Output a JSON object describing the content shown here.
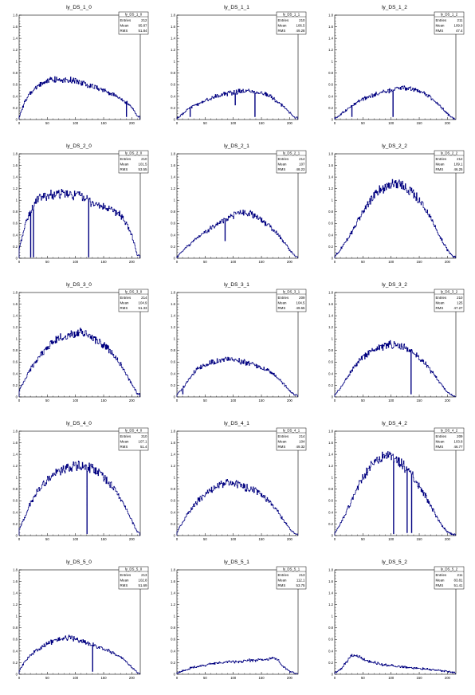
{
  "chart_data": [
    {
      "type": "histogram",
      "title": "ly_DS_1_0",
      "stats_name": "ly_DS_1_0",
      "entries": "212",
      "mean": "95.87",
      "rms": "51.84",
      "xlim": [
        0,
        215
      ],
      "ylim": [
        0,
        1.8
      ],
      "x": [
        0,
        10,
        20,
        30,
        40,
        50,
        60,
        70,
        80,
        90,
        100,
        110,
        120,
        130,
        140,
        150,
        160,
        170,
        180,
        190,
        200,
        210
      ],
      "y": [
        0.05,
        0.3,
        0.45,
        0.55,
        0.62,
        0.67,
        0.7,
        0.69,
        0.7,
        0.68,
        0.66,
        0.64,
        0.61,
        0.58,
        0.55,
        0.51,
        0.46,
        0.42,
        0.36,
        0.3,
        0.22,
        0.05
      ],
      "dips": [
        [
          190,
          0.05
        ]
      ]
    },
    {
      "type": "histogram",
      "title": "ly_DS_1_1",
      "stats_name": "ly_DS_1_1",
      "entries": "210",
      "mean": "106.5",
      "rms": "49.28",
      "xlim": [
        0,
        215
      ],
      "ylim": [
        0,
        1.8
      ],
      "x": [
        0,
        10,
        20,
        30,
        40,
        50,
        60,
        70,
        80,
        90,
        100,
        110,
        120,
        130,
        140,
        150,
        160,
        170,
        180,
        190,
        200,
        210
      ],
      "y": [
        0.02,
        0.1,
        0.18,
        0.24,
        0.28,
        0.33,
        0.36,
        0.4,
        0.43,
        0.45,
        0.47,
        0.48,
        0.49,
        0.49,
        0.48,
        0.46,
        0.42,
        0.37,
        0.3,
        0.22,
        0.12,
        0.03
      ],
      "dips": [
        [
          23,
          0.05
        ],
        [
          103,
          0.25
        ],
        [
          138,
          0.05
        ]
      ]
    },
    {
      "type": "histogram",
      "title": "ly_DS_1_2",
      "stats_name": "ly_DS_1_2",
      "entries": "211",
      "mean": "109.9",
      "rms": "47.4",
      "xlim": [
        0,
        215
      ],
      "ylim": [
        0,
        1.8
      ],
      "x": [
        0,
        10,
        20,
        30,
        40,
        50,
        60,
        70,
        80,
        90,
        100,
        110,
        120,
        130,
        140,
        150,
        160,
        170,
        180,
        190,
        200,
        210
      ],
      "y": [
        0.02,
        0.08,
        0.16,
        0.23,
        0.3,
        0.35,
        0.39,
        0.43,
        0.46,
        0.49,
        0.51,
        0.53,
        0.55,
        0.54,
        0.52,
        0.49,
        0.45,
        0.38,
        0.3,
        0.2,
        0.1,
        0.02
      ],
      "dips": [
        [
          30,
          0.05
        ],
        [
          103,
          0.05
        ]
      ]
    },
    {
      "type": "histogram",
      "title": "ly_DS_2_0",
      "stats_name": "ly_DS_2_0",
      "entries": "210",
      "mean": "101.5",
      "rms": "53.55",
      "xlim": [
        0,
        215
      ],
      "ylim": [
        0,
        1.8
      ],
      "x": [
        0,
        10,
        20,
        30,
        40,
        50,
        60,
        70,
        80,
        90,
        100,
        110,
        120,
        130,
        140,
        150,
        160,
        170,
        180,
        190,
        200,
        210
      ],
      "y": [
        0.15,
        0.55,
        0.8,
        0.98,
        1.05,
        1.08,
        1.1,
        1.09,
        1.12,
        1.08,
        1.1,
        1.07,
        1.02,
        0.95,
        0.92,
        0.88,
        0.84,
        0.8,
        0.75,
        0.6,
        0.4,
        0.05
      ],
      "dips": [
        [
          20,
          0.02
        ],
        [
          25,
          0.02
        ],
        [
          123,
          0.02
        ]
      ]
    },
    {
      "type": "histogram",
      "title": "ly_DS_2_1",
      "stats_name": "ly_DS_2_1",
      "entries": "214",
      "mean": "107",
      "rms": "48.23",
      "xlim": [
        0,
        215
      ],
      "ylim": [
        0,
        1.8
      ],
      "x": [
        0,
        10,
        20,
        30,
        40,
        50,
        60,
        70,
        80,
        90,
        100,
        110,
        120,
        130,
        140,
        150,
        160,
        170,
        180,
        190,
        200,
        210
      ],
      "y": [
        0.02,
        0.12,
        0.22,
        0.3,
        0.38,
        0.45,
        0.52,
        0.58,
        0.64,
        0.7,
        0.74,
        0.78,
        0.8,
        0.76,
        0.72,
        0.66,
        0.58,
        0.5,
        0.4,
        0.28,
        0.14,
        0.03
      ],
      "dips": [
        [
          85,
          0.3
        ]
      ]
    },
    {
      "type": "histogram",
      "title": "ly_DS_2_2",
      "stats_name": "ly_DS_2_2",
      "entries": "212",
      "mean": "109.1",
      "rms": "46.25",
      "xlim": [
        0,
        215
      ],
      "ylim": [
        0,
        1.8
      ],
      "x": [
        0,
        10,
        20,
        30,
        40,
        50,
        60,
        70,
        80,
        90,
        100,
        110,
        120,
        130,
        140,
        150,
        160,
        170,
        180,
        190,
        200,
        210
      ],
      "y": [
        0.03,
        0.15,
        0.3,
        0.45,
        0.62,
        0.8,
        0.95,
        1.08,
        1.18,
        1.24,
        1.28,
        1.3,
        1.26,
        1.2,
        1.12,
        1.0,
        0.86,
        0.7,
        0.5,
        0.32,
        0.14,
        0.03
      ],
      "dips": []
    },
    {
      "type": "histogram",
      "title": "ly_DS_3_0",
      "stats_name": "ly_DS_3_0",
      "entries": "214",
      "mean": "104.9",
      "rms": "51.33",
      "xlim": [
        0,
        215
      ],
      "ylim": [
        0,
        1.8
      ],
      "x": [
        0,
        10,
        20,
        30,
        40,
        50,
        60,
        70,
        80,
        90,
        100,
        110,
        120,
        130,
        140,
        150,
        160,
        170,
        180,
        190,
        200,
        210
      ],
      "y": [
        0.1,
        0.3,
        0.48,
        0.62,
        0.74,
        0.85,
        0.94,
        1.0,
        1.05,
        1.08,
        1.1,
        1.1,
        1.07,
        1.02,
        0.97,
        0.9,
        0.8,
        0.7,
        0.56,
        0.4,
        0.22,
        0.05
      ],
      "dips": []
    },
    {
      "type": "histogram",
      "title": "ly_DS_3_1",
      "stats_name": "ly_DS_3_1",
      "entries": "209",
      "mean": "104.5",
      "rms": "49.65",
      "xlim": [
        0,
        215
      ],
      "ylim": [
        0,
        1.8
      ],
      "x": [
        0,
        10,
        20,
        30,
        40,
        50,
        60,
        70,
        80,
        90,
        100,
        110,
        120,
        130,
        140,
        150,
        160,
        170,
        180,
        190,
        200,
        210
      ],
      "y": [
        0.04,
        0.15,
        0.3,
        0.42,
        0.5,
        0.55,
        0.6,
        0.62,
        0.64,
        0.65,
        0.64,
        0.62,
        0.6,
        0.57,
        0.54,
        0.5,
        0.46,
        0.4,
        0.32,
        0.22,
        0.1,
        0.03
      ],
      "dips": [
        [
          10,
          0.05
        ]
      ]
    },
    {
      "type": "histogram",
      "title": "ly_DS_3_2",
      "stats_name": "ly_DS_3_2",
      "entries": "210",
      "mean": "125",
      "rms": "47.27",
      "xlim": [
        0,
        215
      ],
      "ylim": [
        0,
        1.8
      ],
      "x": [
        0,
        10,
        20,
        30,
        40,
        50,
        60,
        70,
        80,
        90,
        100,
        110,
        120,
        130,
        140,
        150,
        160,
        170,
        180,
        190,
        200,
        210
      ],
      "y": [
        0.04,
        0.15,
        0.3,
        0.45,
        0.58,
        0.68,
        0.76,
        0.82,
        0.86,
        0.88,
        0.9,
        0.88,
        0.86,
        0.82,
        0.76,
        0.68,
        0.58,
        0.46,
        0.34,
        0.2,
        0.08,
        0.02
      ],
      "dips": [
        [
          135,
          0.05
        ]
      ]
    },
    {
      "type": "histogram",
      "title": "ly_DS_4_0",
      "stats_name": "ly_DS_4_0",
      "entries": "310",
      "mean": "107.1",
      "rms": "51.4",
      "xlim": [
        0,
        215
      ],
      "ylim": [
        0,
        1.8
      ],
      "x": [
        0,
        10,
        20,
        30,
        40,
        50,
        60,
        70,
        80,
        90,
        100,
        110,
        120,
        130,
        140,
        150,
        160,
        170,
        180,
        190,
        200,
        210
      ],
      "y": [
        0.1,
        0.32,
        0.55,
        0.72,
        0.86,
        0.96,
        1.04,
        1.1,
        1.14,
        1.18,
        1.2,
        1.2,
        1.18,
        1.15,
        1.1,
        1.02,
        0.92,
        0.8,
        0.64,
        0.46,
        0.26,
        0.06
      ],
      "dips": [
        [
          120,
          0.03
        ]
      ]
    },
    {
      "type": "histogram",
      "title": "ly_DS_4_1",
      "stats_name": "ly_DS_4_1",
      "entries": "214",
      "mean": "104",
      "rms": "49.32",
      "xlim": [
        0,
        215
      ],
      "ylim": [
        0,
        1.8
      ],
      "x": [
        0,
        10,
        20,
        30,
        40,
        50,
        60,
        70,
        80,
        90,
        100,
        110,
        120,
        130,
        140,
        150,
        160,
        170,
        180,
        190,
        200,
        210
      ],
      "y": [
        0.05,
        0.22,
        0.4,
        0.52,
        0.62,
        0.7,
        0.78,
        0.84,
        0.88,
        0.92,
        0.9,
        0.88,
        0.84,
        0.8,
        0.76,
        0.7,
        0.62,
        0.52,
        0.4,
        0.26,
        0.12,
        0.03
      ],
      "dips": []
    },
    {
      "type": "histogram",
      "title": "ly_DS_4_2",
      "stats_name": "ly_DS_4_2",
      "entries": "209",
      "mean": "103.8",
      "rms": "46.77",
      "xlim": [
        0,
        215
      ],
      "ylim": [
        0,
        1.8
      ],
      "x": [
        0,
        10,
        20,
        30,
        40,
        50,
        60,
        70,
        80,
        90,
        100,
        110,
        120,
        130,
        140,
        150,
        160,
        170,
        180,
        190,
        200,
        210
      ],
      "y": [
        0.04,
        0.2,
        0.4,
        0.6,
        0.82,
        1.0,
        1.15,
        1.26,
        1.32,
        1.36,
        1.36,
        1.3,
        1.22,
        1.12,
        1.0,
        0.86,
        0.7,
        0.52,
        0.34,
        0.18,
        0.06,
        0.02
      ],
      "dips": [
        [
          104,
          0.03
        ],
        [
          128,
          0.05
        ],
        [
          136,
          0.05
        ]
      ]
    },
    {
      "type": "histogram",
      "title": "ly_DS_5_0",
      "stats_name": "ly_DS_5_0",
      "entries": "213",
      "mean": "102.8",
      "rms": "51.69",
      "xlim": [
        0,
        215
      ],
      "ylim": [
        0,
        1.8
      ],
      "x": [
        0,
        10,
        20,
        30,
        40,
        50,
        60,
        70,
        80,
        90,
        100,
        110,
        120,
        130,
        140,
        150,
        160,
        170,
        180,
        190,
        200,
        210
      ],
      "y": [
        0.05,
        0.22,
        0.32,
        0.4,
        0.46,
        0.52,
        0.56,
        0.6,
        0.62,
        0.64,
        0.6,
        0.58,
        0.55,
        0.52,
        0.48,
        0.44,
        0.4,
        0.36,
        0.3,
        0.22,
        0.12,
        0.03
      ],
      "dips": [
        [
          130,
          0.05
        ]
      ]
    },
    {
      "type": "histogram",
      "title": "ly_DS_5_1",
      "stats_name": "ly_DS_5_1",
      "entries": "213",
      "mean": "112.1",
      "rms": "53.75",
      "xlim": [
        0,
        215
      ],
      "ylim": [
        0,
        1.8
      ],
      "x": [
        0,
        10,
        20,
        30,
        40,
        50,
        60,
        70,
        80,
        90,
        100,
        110,
        120,
        130,
        140,
        150,
        160,
        170,
        180,
        190,
        200,
        210
      ],
      "y": [
        0.03,
        0.06,
        0.09,
        0.12,
        0.14,
        0.16,
        0.18,
        0.19,
        0.2,
        0.21,
        0.22,
        0.22,
        0.23,
        0.24,
        0.24,
        0.25,
        0.26,
        0.28,
        0.24,
        0.12,
        0.05,
        0.02
      ],
      "dips": []
    },
    {
      "type": "histogram",
      "title": "ly_DS_5_2",
      "stats_name": "ly_DS_5_2",
      "entries": "211",
      "mean": "83.81",
      "rms": "51.41",
      "xlim": [
        0,
        215
      ],
      "ylim": [
        0,
        1.8
      ],
      "x": [
        0,
        10,
        20,
        30,
        40,
        50,
        60,
        70,
        80,
        90,
        100,
        110,
        120,
        130,
        140,
        150,
        160,
        170,
        180,
        190,
        200,
        210
      ],
      "y": [
        0.02,
        0.08,
        0.2,
        0.33,
        0.32,
        0.26,
        0.22,
        0.2,
        0.18,
        0.16,
        0.15,
        0.14,
        0.13,
        0.12,
        0.11,
        0.1,
        0.09,
        0.08,
        0.07,
        0.06,
        0.05,
        0.03
      ],
      "dips": []
    }
  ],
  "axis": {
    "yticks": [
      "0",
      "0.2",
      "0.4",
      "0.6",
      "0.8",
      "1",
      "1.2",
      "1.4",
      "1.6",
      "1.8"
    ],
    "xticks": [
      "0",
      "50",
      "100",
      "150",
      "200"
    ],
    "entries_label": "Entries",
    "mean_label": "Mean",
    "rms_label": "RMS"
  },
  "colors": {
    "line": "#000080",
    "frame": "#000000",
    "background": "#ffffff"
  }
}
